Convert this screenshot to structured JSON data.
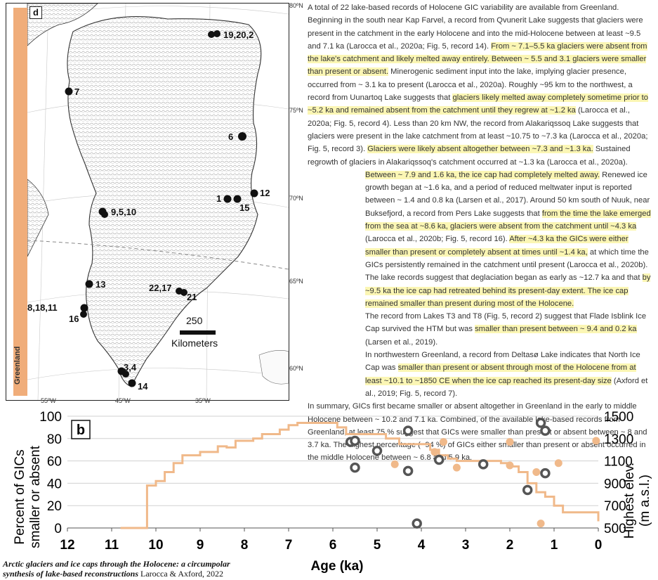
{
  "map": {
    "panel_label": "d",
    "side_label": "Greenland",
    "lat_labels": [
      "80ºN",
      "75ºN",
      "70ºN",
      "65ºN",
      "60ºN"
    ],
    "lon_labels": [
      "55ºW",
      "45ºW",
      "35ºW"
    ],
    "scale_value": "250",
    "scale_unit": "Kilometers",
    "sites": [
      "19,20,2",
      "7",
      "6",
      "1",
      "12",
      "15",
      "9,5,10",
      "13",
      "22,17",
      "21",
      "8,18,11",
      "16",
      "3,4",
      "14"
    ]
  },
  "text": {
    "p1": [
      {
        "t": "A total of 22 lake-based records of Holocene GIC variability are available from Greenland. Beginning in the south near Kap Farvel, a record from Qvunerit Lake suggests that glaciers were present in the catchment in the early Holocene and into the mid-Holocene between at least ~9.5 and 7.1 ka (Larocca et al., 2020a; Fig. 5, record 14). ",
        "h": false
      },
      {
        "t": "From ~ 7.1–5.5 ka glaciers were absent from the lake's catchment and likely melted away entirely. Between ~ 5.5 and 3.1 glaciers were smaller than present or absent.",
        "h": true
      },
      {
        "t": " Minerogenic sediment input into the lake, implying glacier presence, occurred from ~ 3.1 ka to present (Larocca et al., 2020a). Roughly ~95 km to the northwest, a record from Uunartoq Lake suggests that ",
        "h": false
      },
      {
        "t": "glaciers likely melted away completely sometime prior to ~5.2 ka and remained absent from the catchment until they regrew at ~1.2 ka",
        "h": true
      },
      {
        "t": " (Larocca et al., 2020a; Fig. 5, record 4). Less than 20 km NW, the record from Alakariqssoq Lake suggests that glaciers were present in the lake catchment from at least ~10.75 to ~7.3 ka (Larocca et al., 2020a; Fig. 5, record 3). ",
        "h": false
      },
      {
        "t": "Glaciers were likely absent altogether between ~7.3 and ~1.3 ka.",
        "h": true
      },
      {
        "t": " Sustained regrowth of glaciers in Alakariqssoq's catchment occurred at ~1.3 ka (Larocca et al., 2020a).",
        "h": false
      }
    ],
    "p2": [
      {
        "t": "Between ~ 7.9 and 1.6 ka, the ice cap had completely melted away.",
        "h": true
      },
      {
        "t": " Renewed ice growth began at ~1.6 ka, and a period of reduced meltwater input is reported between ~ 1.4 and 0.8 ka (Larsen et al., 2017). Around 50 km south of Nuuk, near Buksefjord, a record from Pers Lake suggests that ",
        "h": false
      },
      {
        "t": "from the time the lake emerged from the sea at ~8.6 ka, glaciers were absent from the catchment until ~4.3 ka",
        "h": true
      },
      {
        "t": " (Larocca et al., 2020b; Fig. 5, record 16). ",
        "h": false
      },
      {
        "t": "After ~4.3 ka the GICs were either smaller than present or completely absent at times until ~1.4 ka,",
        "h": true
      },
      {
        "t": " at which time the GICs persistently remained in the catchment until present (Larocca et al., 2020b).",
        "h": false
      }
    ],
    "p3": [
      {
        "t": "The lake records suggest that deglaciation began as early as ~12.7 ka and that ",
        "h": false
      },
      {
        "t": "by ~9.5 ka the ice cap had retreated behind its present-day extent. The ice cap remained smaller than present during most of the Holocene.",
        "h": true
      }
    ],
    "p4": [
      {
        "t": "The record from Lakes T3 and T8 (Fig. 5, record 2) suggest that Flade Isblink Ice Cap survived the HTM but was ",
        "h": false
      },
      {
        "t": "smaller than present between ~ 9.4 and 0.2 ka",
        "h": true
      },
      {
        "t": " (Larsen et al., 2019).",
        "h": false
      }
    ],
    "p5": [
      {
        "t": "In northwestern Greenland, a record from Deltasø Lake indicates that North Ice Cap was ",
        "h": false
      },
      {
        "t": "smaller than present or absent through most of the Holocene from at least ~10.1 to ~1850 CE when the ice cap reached its present-day size",
        "h": true
      },
      {
        "t": " (Axford et al., 2019; Fig. 5, record 7).",
        "h": false
      }
    ],
    "p6": [
      {
        "t": "In summary, GICs first became smaller or absent altogether in Greenland in the early to middle Holocene between ~ 10.2 and 7.1 ka. Combined, of the available lake-based records from Greenland, at least 75 % suggest that GICs were smaller than present or absent between ~ 8 and 3.7 ka. The highest percentage (~94 %) of GICs either smaller than present or absent occurred in the middle Holocene between ~ 6.8 and 5.9 ka.",
        "h": false
      }
    ]
  },
  "chart_data": {
    "type": "line",
    "panel_label": "b",
    "xlabel": "Age (ka)",
    "ylabel": "Percent of GICs smaller or absent",
    "ylabel_right": "Highest elev. (m a.s.l.)",
    "xlim": [
      12,
      0
    ],
    "ylim": [
      0,
      100
    ],
    "ylim_right": [
      500,
      1500
    ],
    "x_ticks": [
      12,
      11,
      10,
      9,
      8,
      7,
      6,
      5,
      4,
      3,
      2,
      1,
      0
    ],
    "y_ticks": [
      0,
      20,
      40,
      60,
      80,
      100
    ],
    "y_right_ticks": [
      500,
      700,
      900,
      1100,
      1300,
      1500
    ],
    "line_color": "#f0b98a",
    "series": [
      {
        "type": "step-line",
        "x": [
          10.8,
          10.3,
          10.2,
          10.0,
          9.8,
          9.6,
          9.4,
          9.2,
          9.0,
          8.8,
          8.6,
          8.4,
          8.2,
          8.0,
          7.8,
          7.6,
          7.4,
          7.2,
          7.0,
          6.8,
          6.6,
          6.4,
          6.2,
          6.0,
          5.9,
          5.7,
          5.5,
          5.3,
          5.0,
          4.8,
          4.5,
          4.3,
          4.0,
          3.8,
          3.6,
          3.4,
          3.2,
          3.0,
          2.8,
          2.5,
          2.2,
          2.0,
          1.8,
          1.6,
          1.4,
          1.2,
          1.0,
          0.8,
          0.5,
          0.2,
          0.0
        ],
        "values": [
          0,
          0,
          38,
          42,
          50,
          58,
          65,
          65,
          68,
          68,
          73,
          72,
          78,
          78,
          80,
          84,
          84,
          88,
          92,
          94,
          94,
          94,
          94,
          94,
          90,
          84,
          84,
          84,
          84,
          80,
          75,
          75,
          75,
          70,
          65,
          62,
          60,
          60,
          60,
          60,
          58,
          55,
          50,
          40,
          32,
          28,
          20,
          14,
          14,
          14,
          6
        ]
      },
      {
        "name": "dark circles",
        "type": "scatter",
        "color": "#555555",
        "points": [
          [
            5.6,
            1270
          ],
          [
            5.5,
            1280
          ],
          [
            5.5,
            1040
          ],
          [
            5.0,
            1190
          ],
          [
            4.3,
            1370
          ],
          [
            4.3,
            1010
          ],
          [
            4.1,
            540
          ],
          [
            3.6,
            1110
          ],
          [
            2.6,
            1070
          ],
          [
            1.6,
            840
          ],
          [
            1.3,
            1440
          ],
          [
            1.2,
            1370
          ],
          [
            1.2,
            990
          ]
        ]
      },
      {
        "name": "orange circles",
        "type": "scatter",
        "color": "#f0b98a",
        "points": [
          [
            4.6,
            1070
          ],
          [
            3.7,
            1180
          ],
          [
            3.5,
            1270
          ],
          [
            3.2,
            1040
          ],
          [
            2.0,
            1270
          ],
          [
            2.0,
            1060
          ],
          [
            1.4,
            1000
          ],
          [
            1.3,
            540
          ],
          [
            0.9,
            1080
          ],
          [
            0.05,
            1280
          ]
        ]
      }
    ]
  },
  "caption": {
    "title_line1": "Arctic glaciers and ice caps through the Holocene: a circumpolar",
    "title_line2": "synthesis of lake-based reconstructions",
    "credit": "Larocca & Axford, 2022"
  }
}
